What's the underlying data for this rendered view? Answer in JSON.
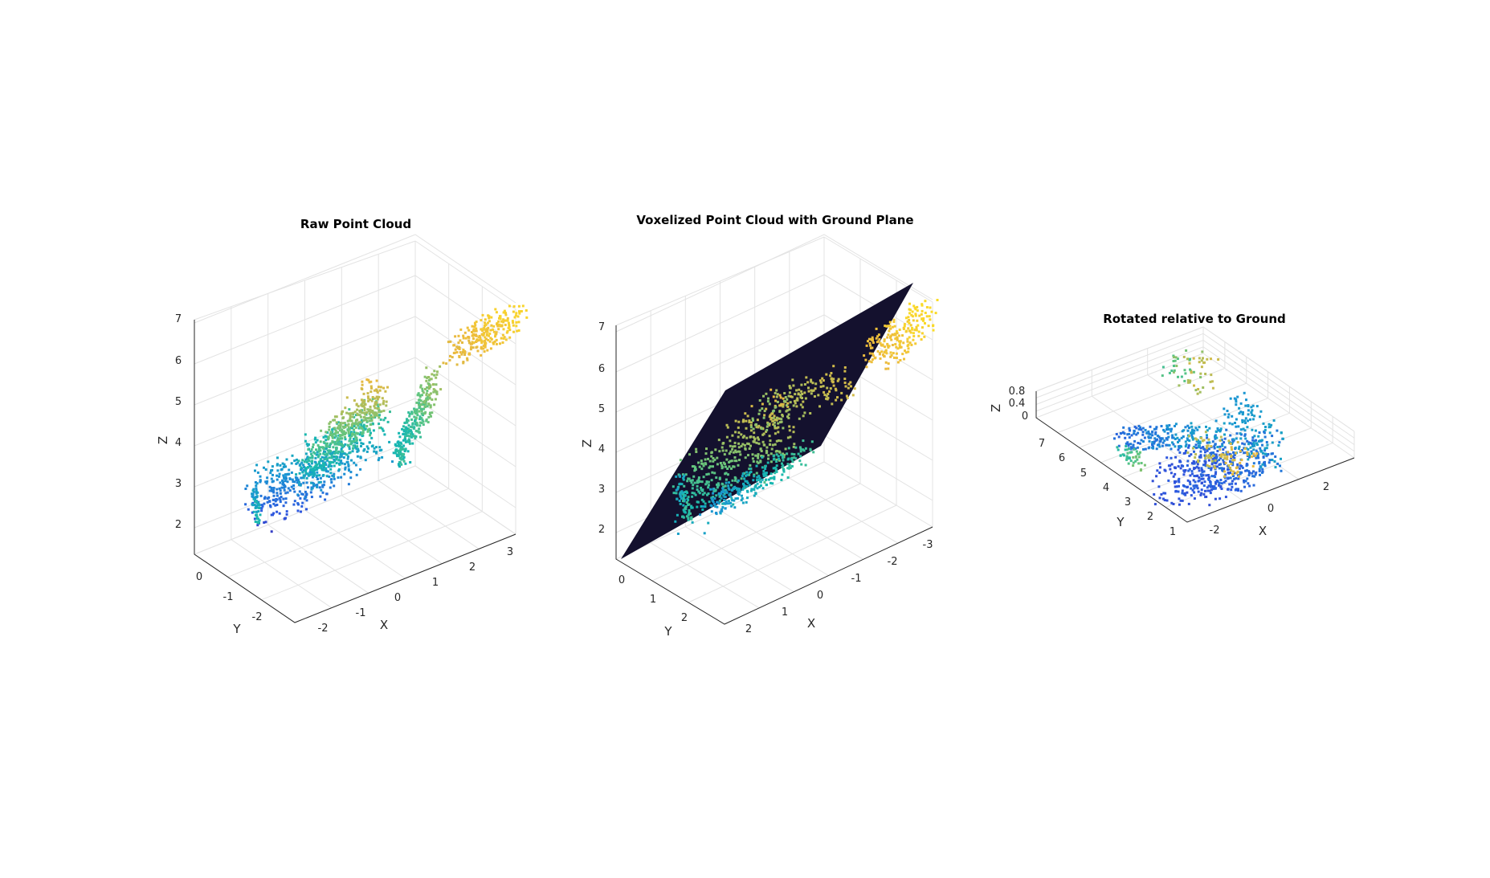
{
  "figure": {
    "background": "#ffffff",
    "colormap": "parula",
    "colormap_stops": [
      "#3e26a8",
      "#2d58e0",
      "#1a94d3",
      "#17b8b0",
      "#61c57f",
      "#b4bd58",
      "#ebb93e",
      "#f9d52c",
      "#f9fb0e"
    ],
    "plane_color": "#14112e"
  },
  "chart_data": [
    {
      "type": "scatter",
      "title": "Raw Point Cloud",
      "xlabel": "X",
      "ylabel": "Y",
      "zlabel": "Z",
      "x_ticks": [
        "-2",
        "-1",
        "0",
        "1",
        "2",
        "3"
      ],
      "y_ticks": [
        "0",
        "-1",
        "-2"
      ],
      "z_ticks": [
        "2",
        "3",
        "4",
        "5",
        "6",
        "7"
      ],
      "xlim": [
        -2.3,
        3.3
      ],
      "ylim": [
        -2.6,
        0.2
      ],
      "zlim": [
        1.6,
        7.2
      ],
      "grid": true
    },
    {
      "type": "scatter",
      "title": "Voxelized Point Cloud with Ground Plane",
      "xlabel": "X",
      "ylabel": "Y",
      "zlabel": "Z",
      "x_ticks": [
        "2",
        "1",
        "0",
        "-1",
        "-2",
        "-3"
      ],
      "y_ticks": [
        "0",
        "1",
        "2"
      ],
      "z_ticks": [
        "2",
        "3",
        "4",
        "5",
        "6",
        "7"
      ],
      "xlim": [
        2.3,
        -3.3
      ],
      "ylim": [
        -0.2,
        2.6
      ],
      "zlim": [
        1.6,
        7.2
      ],
      "grid": true
    },
    {
      "type": "scatter",
      "title": "Rotated relative to Ground",
      "xlabel": "X",
      "ylabel": "Y",
      "zlabel": "Z",
      "x_ticks": [
        "-2",
        "0",
        "2"
      ],
      "y_ticks": [
        "1",
        "2",
        "3",
        "4",
        "5",
        "6",
        "7"
      ],
      "z_ticks": [
        "0",
        "0.4",
        "0.8"
      ],
      "xlim": [
        -2.8,
        3.5
      ],
      "ylim": [
        0.8,
        7.8
      ],
      "zlim": [
        0,
        1
      ],
      "grid": true
    }
  ]
}
